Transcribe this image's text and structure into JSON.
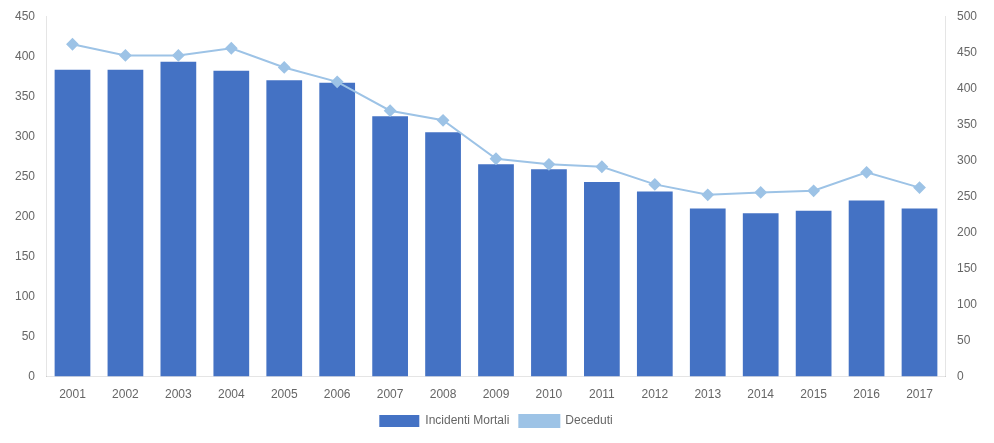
{
  "chart_data": {
    "type": "bar",
    "categories": [
      "2001",
      "2002",
      "2003",
      "2004",
      "2005",
      "2006",
      "2007",
      "2008",
      "2009",
      "2010",
      "2011",
      "2012",
      "2013",
      "2014",
      "2015",
      "2016",
      "2017"
    ],
    "series": [
      {
        "name": "Incidenti Mortali",
        "type": "bar",
        "color": "#4472C4",
        "values": [
          383,
          383,
          393,
          382,
          370,
          367,
          325,
          305,
          265,
          259,
          243,
          231,
          210,
          204,
          207,
          220,
          210
        ]
      },
      {
        "name": "Deceduti",
        "type": "line",
        "color": "#9DC3E6",
        "marker": "diamond",
        "values": [
          415,
          401,
          401,
          410,
          386,
          368,
          332,
          320,
          272,
          265,
          262,
          240,
          227,
          230,
          232,
          255,
          236
        ]
      }
    ],
    "ylim": [
      0,
      450
    ],
    "yticks": [
      0,
      50,
      100,
      150,
      200,
      250,
      300,
      350,
      400,
      450
    ],
    "y2lim": [
      0,
      500
    ],
    "y2ticks": [
      0,
      50,
      100,
      150,
      200,
      250,
      300,
      350,
      400,
      450,
      500
    ],
    "grid": false,
    "legend": "bottom"
  }
}
